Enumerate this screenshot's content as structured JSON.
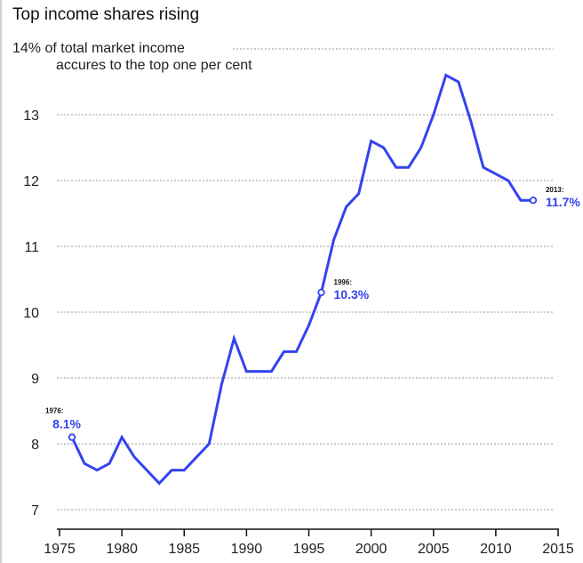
{
  "chart_data": {
    "type": "line",
    "title": "Top income shares rising",
    "ylabel_line1": "% of total market income",
    "ylabel_line2": "accures to the top one per cent",
    "x": [
      1976,
      1977,
      1978,
      1979,
      1980,
      1981,
      1982,
      1983,
      1984,
      1985,
      1986,
      1987,
      1988,
      1989,
      1990,
      1991,
      1992,
      1993,
      1994,
      1995,
      1996,
      1997,
      1998,
      1999,
      2000,
      2001,
      2002,
      2003,
      2004,
      2005,
      2006,
      2007,
      2008,
      2009,
      2010,
      2011,
      2012,
      2013
    ],
    "series": [
      {
        "values": [
          8.1,
          7.7,
          7.6,
          7.7,
          8.1,
          7.8,
          7.6,
          7.4,
          7.6,
          7.6,
          7.8,
          8.0,
          8.9,
          9.6,
          9.1,
          9.1,
          9.1,
          9.4,
          9.4,
          9.8,
          10.3,
          11.1,
          11.6,
          11.8,
          12.6,
          12.5,
          12.2,
          12.2,
          12.5,
          13.0,
          13.6,
          13.5,
          12.9,
          12.2,
          12.1,
          12.0,
          11.7,
          11.7
        ],
        "color": "#3443f0"
      }
    ],
    "xlim": [
      1975,
      2015
    ],
    "ylim": [
      7,
      14
    ],
    "xticks": [
      "1975",
      "1980",
      "1985",
      "1990",
      "1995",
      "2000",
      "2005",
      "2010",
      "2015"
    ],
    "yticks": [
      "7",
      "8",
      "9",
      "10",
      "11",
      "12",
      "13",
      "14"
    ],
    "grid": "horizontal dotted",
    "annotations": [
      {
        "x": 1976,
        "y": 8.1,
        "year": "1976:",
        "value": "8.1%",
        "side": "above"
      },
      {
        "x": 1996,
        "y": 10.3,
        "year": "1996:",
        "value": "10.3%",
        "side": "right"
      },
      {
        "x": 2013,
        "y": 11.7,
        "year": "2013:",
        "value": "11.7%",
        "side": "right"
      }
    ]
  }
}
